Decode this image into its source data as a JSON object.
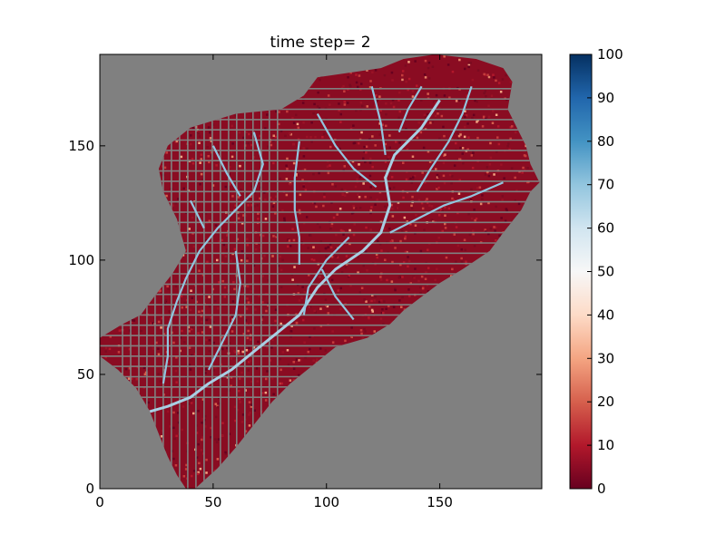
{
  "chart_data": {
    "type": "heatmap",
    "title": "time step= 2",
    "xlabel": "",
    "ylabel": "",
    "xlim": [
      0,
      195
    ],
    "ylim": [
      0,
      190
    ],
    "x_ticks": [
      0,
      50,
      100,
      150
    ],
    "y_ticks": [
      0,
      50,
      100,
      150
    ],
    "colorbar": {
      "colormap": "RdBu",
      "range": [
        0,
        100
      ],
      "ticks": [
        0,
        10,
        20,
        30,
        40,
        50,
        60,
        70,
        80,
        90,
        100
      ]
    },
    "mask_color": "#808080",
    "watershed_boundary": [
      [
        38,
        0
      ],
      [
        42,
        0
      ],
      [
        52,
        9
      ],
      [
        60,
        18
      ],
      [
        68,
        28
      ],
      [
        76,
        38
      ],
      [
        84,
        46
      ],
      [
        94,
        54
      ],
      [
        104,
        62
      ],
      [
        118,
        66
      ],
      [
        128,
        72
      ],
      [
        134,
        78
      ],
      [
        142,
        84
      ],
      [
        150,
        90
      ],
      [
        160,
        96
      ],
      [
        166,
        100
      ],
      [
        172,
        104
      ],
      [
        178,
        112
      ],
      [
        186,
        122
      ],
      [
        190,
        130
      ],
      [
        194,
        134
      ],
      [
        190,
        142
      ],
      [
        188,
        150
      ],
      [
        184,
        158
      ],
      [
        180,
        166
      ],
      [
        182,
        178
      ],
      [
        178,
        184
      ],
      [
        166,
        188
      ],
      [
        148,
        190
      ],
      [
        134,
        188
      ],
      [
        124,
        184
      ],
      [
        110,
        182
      ],
      [
        96,
        180
      ],
      [
        90,
        172
      ],
      [
        80,
        166
      ],
      [
        60,
        164
      ],
      [
        40,
        158
      ],
      [
        30,
        150
      ],
      [
        26,
        140
      ],
      [
        28,
        130
      ],
      [
        34,
        118
      ],
      [
        38,
        104
      ],
      [
        32,
        94
      ],
      [
        24,
        84
      ],
      [
        18,
        76
      ],
      [
        10,
        72
      ],
      [
        0,
        66
      ],
      [
        0,
        58
      ],
      [
        8,
        52
      ],
      [
        16,
        44
      ],
      [
        22,
        34
      ],
      [
        26,
        24
      ],
      [
        30,
        14
      ],
      [
        34,
        6
      ]
    ],
    "main_channels": [
      [
        [
          150,
          170
        ],
        [
          142,
          158
        ],
        [
          130,
          146
        ],
        [
          126,
          136
        ],
        [
          128,
          124
        ],
        [
          124,
          112
        ],
        [
          116,
          104
        ],
        [
          104,
          96
        ],
        [
          96,
          88
        ],
        [
          88,
          76
        ],
        [
          78,
          68
        ],
        [
          68,
          60
        ],
        [
          58,
          52
        ],
        [
          48,
          46
        ],
        [
          40,
          40
        ],
        [
          30,
          36
        ],
        [
          16,
          32
        ]
      ],
      [
        [
          178,
          134
        ],
        [
          164,
          128
        ],
        [
          152,
          124
        ],
        [
          140,
          118
        ],
        [
          128,
          112
        ]
      ],
      [
        [
          120,
          176
        ],
        [
          124,
          160
        ],
        [
          126,
          146
        ]
      ],
      [
        [
          96,
          164
        ],
        [
          104,
          150
        ],
        [
          112,
          140
        ],
        [
          122,
          132
        ]
      ],
      [
        [
          68,
          156
        ],
        [
          72,
          142
        ],
        [
          68,
          130
        ],
        [
          60,
          122
        ],
        [
          52,
          114
        ],
        [
          44,
          104
        ],
        [
          38,
          92
        ],
        [
          34,
          82
        ],
        [
          30,
          70
        ],
        [
          30,
          58
        ],
        [
          28,
          46
        ]
      ],
      [
        [
          88,
          152
        ],
        [
          86,
          136
        ],
        [
          86,
          122
        ],
        [
          88,
          110
        ],
        [
          88,
          98
        ]
      ],
      [
        [
          50,
          150
        ],
        [
          56,
          138
        ],
        [
          62,
          128
        ]
      ],
      [
        [
          60,
          104
        ],
        [
          62,
          90
        ],
        [
          60,
          76
        ],
        [
          54,
          64
        ],
        [
          48,
          52
        ]
      ],
      [
        [
          110,
          110
        ],
        [
          100,
          100
        ],
        [
          92,
          88
        ],
        [
          90,
          76
        ]
      ],
      [
        [
          40,
          126
        ],
        [
          46,
          114
        ]
      ],
      [
        [
          142,
          176
        ],
        [
          136,
          166
        ],
        [
          132,
          156
        ]
      ],
      [
        [
          164,
          176
        ],
        [
          160,
          164
        ],
        [
          154,
          152
        ],
        [
          146,
          140
        ],
        [
          140,
          130
        ]
      ],
      [
        [
          112,
          74
        ],
        [
          104,
          84
        ],
        [
          98,
          96
        ]
      ]
    ]
  }
}
